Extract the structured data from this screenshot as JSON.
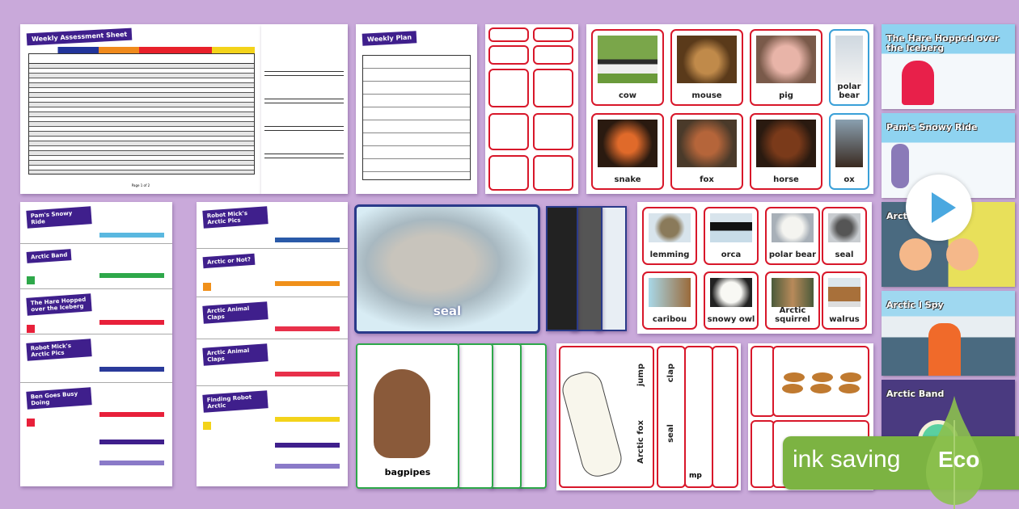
{
  "assessment": {
    "title": "Weekly Assessment Sheet",
    "footer": "Page 1 of 2"
  },
  "weekly_plan": {
    "title": "Weekly Plan"
  },
  "photo_cards_farm": [
    "cow",
    "mouse",
    "pig",
    "polar bear",
    "snake",
    "fox",
    "horse",
    "ox"
  ],
  "slides": [
    "The Hare Hopped over the Iceberg",
    "Pam's Snowy Ride",
    "Arctic",
    "Arctic I Spy",
    "Arctic Band"
  ],
  "lesson_plans_left": [
    "Pam's Snowy Ride",
    "Arctic Band",
    "The Hare Hopped over the Iceberg",
    "Robot Mick's Arctic Pics",
    "Ben Goes Busy Doing"
  ],
  "lesson_plans_right": [
    "Robot Mick's Arctic Pics",
    "Arctic or Not?",
    "Arctic Animal Claps",
    "Arctic Animal Claps",
    "Finding Robot Arctic"
  ],
  "seal_poster": {
    "label": "seal"
  },
  "photo_cards_arctic": [
    "lemming",
    "orca",
    "polar bear",
    "seal",
    "caribou",
    "snowy owl",
    "Arctic squirrel",
    "walrus"
  ],
  "bagpipes_card": {
    "label": "bagpipes"
  },
  "action_cards": {
    "animal": "Arctic fox",
    "action": "jump",
    "animal2": "seal",
    "action2": "clap",
    "partial": "mp"
  },
  "eco_badge": {
    "text": "ink saving",
    "eco": "Eco"
  },
  "colors": {
    "background": "#c9a9da",
    "brand_purple": "#3f1f8c",
    "card_red": "#d8172a",
    "eco_green": "#7cb342",
    "play_blue": "#4aa8e0"
  },
  "icons": {
    "play": "play-icon",
    "leaf": "leaf-icon"
  }
}
